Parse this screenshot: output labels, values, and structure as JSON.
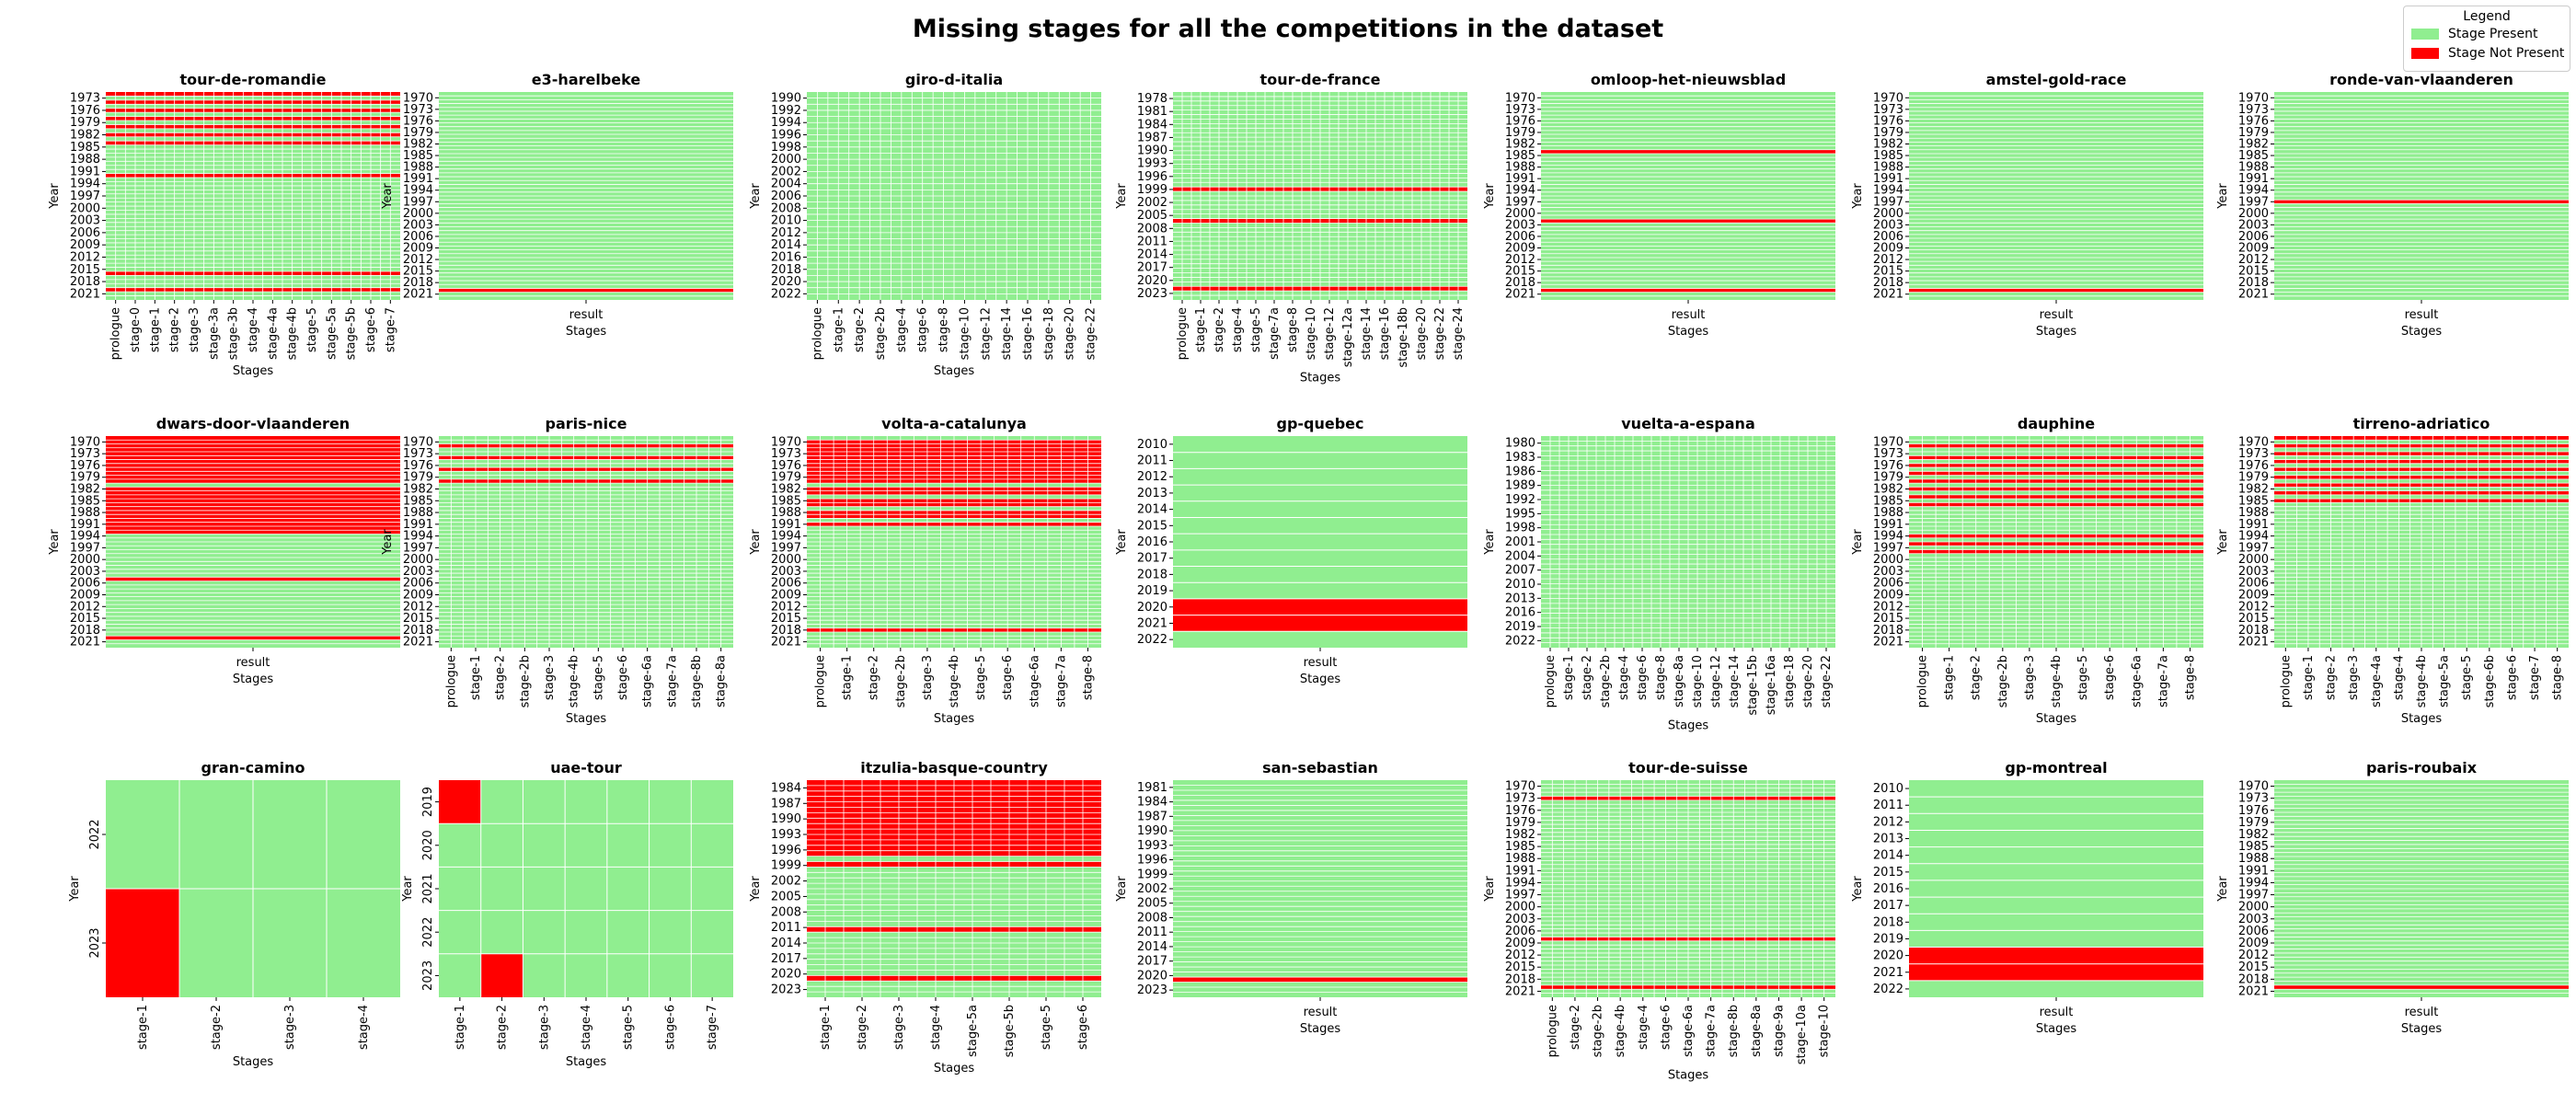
{
  "figure": {
    "title": "Missing stages for all the competitions in the dataset",
    "legend_title": "Legend",
    "legend_items": [
      {
        "label": "Stage Present",
        "color": "#90ee90"
      },
      {
        "label": "Stage Not Present",
        "color": "#ff0000"
      }
    ]
  },
  "chart_data": [
    {
      "type": "heatmap",
      "title": "tour-de-romandie",
      "xlabel": "Stages",
      "ylabel": "Year",
      "xticks": [
        "prologue",
        "stage-0",
        "stage-1",
        "stage-2",
        "stage-3",
        "stage-3a",
        "stage-3b",
        "stage-4",
        "stage-4a",
        "stage-4b",
        "stage-5",
        "stage-5a",
        "stage-5b",
        "stage-6",
        "stage-7"
      ],
      "yticks": [
        "1973",
        "1976",
        "1979",
        "1982",
        "1985",
        "1988",
        "1991",
        "1994",
        "1997",
        "2000",
        "2003",
        "2006",
        "2009",
        "2012",
        "2015",
        "2018",
        "2021"
      ],
      "rows": 51,
      "cols": 30,
      "full_missing_rows": [
        0,
        2,
        4,
        6,
        8,
        10,
        12,
        20,
        44,
        48
      ]
    },
    {
      "type": "heatmap",
      "title": "e3-harelbeke",
      "xlabel": "Stages",
      "ylabel": "Year",
      "xticks": [
        "result"
      ],
      "yticks": [
        "1970",
        "1973",
        "1976",
        "1979",
        "1982",
        "1985",
        "1988",
        "1991",
        "1994",
        "1997",
        "2000",
        "2003",
        "2006",
        "2009",
        "2012",
        "2015",
        "2018",
        "2021"
      ],
      "rows": 54,
      "cols": 1,
      "full_missing_rows": [
        51
      ]
    },
    {
      "type": "heatmap",
      "title": "giro-d-italia",
      "xlabel": "Stages",
      "ylabel": "Year",
      "xticks": [
        "prologue",
        "stage-1",
        "stage-2",
        "stage-2b",
        "stage-4",
        "stage-6",
        "stage-8",
        "stage-10",
        "stage-12",
        "stage-14",
        "stage-16",
        "stage-18",
        "stage-20",
        "stage-22"
      ],
      "yticks": [
        "1990",
        "1992",
        "1994",
        "1996",
        "1998",
        "2000",
        "2002",
        "2004",
        "2006",
        "2008",
        "2010",
        "2012",
        "2014",
        "2016",
        "2018",
        "2020",
        "2022"
      ],
      "rows": 34,
      "cols": 28,
      "full_missing_rows": []
    },
    {
      "type": "heatmap",
      "title": "tour-de-france",
      "xlabel": "Stages",
      "ylabel": "Year",
      "xticks": [
        "prologue",
        "stage-1",
        "stage-2",
        "stage-4",
        "stage-5",
        "stage-7a",
        "stage-8",
        "stage-10",
        "stage-12",
        "stage-12a",
        "stage-14",
        "stage-16",
        "stage-18b",
        "stage-20",
        "stage-22",
        "stage-24"
      ],
      "yticks": [
        "1978",
        "1981",
        "1984",
        "1987",
        "1990",
        "1993",
        "1996",
        "1999",
        "2002",
        "2005",
        "2008",
        "2011",
        "2014",
        "2017",
        "2020",
        "2023"
      ],
      "rows": 46,
      "cols": 32,
      "full_missing_rows": [
        21,
        28,
        43
      ]
    },
    {
      "type": "heatmap",
      "title": "omloop-het-nieuwsblad",
      "xlabel": "Stages",
      "ylabel": "Year",
      "xticks": [
        "result"
      ],
      "yticks": [
        "1970",
        "1973",
        "1976",
        "1979",
        "1982",
        "1985",
        "1988",
        "1991",
        "1994",
        "1997",
        "2000",
        "2003",
        "2006",
        "2009",
        "2012",
        "2015",
        "2018",
        "2021"
      ],
      "rows": 54,
      "cols": 1,
      "full_missing_rows": [
        15,
        33,
        51
      ]
    },
    {
      "type": "heatmap",
      "title": "amstel-gold-race",
      "xlabel": "Stages",
      "ylabel": "Year",
      "xticks": [
        "result"
      ],
      "yticks": [
        "1970",
        "1973",
        "1976",
        "1979",
        "1982",
        "1985",
        "1988",
        "1991",
        "1994",
        "1997",
        "2000",
        "2003",
        "2006",
        "2009",
        "2012",
        "2015",
        "2018",
        "2021"
      ],
      "rows": 54,
      "cols": 1,
      "full_missing_rows": [
        51
      ]
    },
    {
      "type": "heatmap",
      "title": "ronde-van-vlaanderen",
      "xlabel": "Stages",
      "ylabel": "Year",
      "xticks": [
        "result"
      ],
      "yticks": [
        "1970",
        "1973",
        "1976",
        "1979",
        "1982",
        "1985",
        "1988",
        "1991",
        "1994",
        "1997",
        "2000",
        "2003",
        "2006",
        "2009",
        "2012",
        "2015",
        "2018",
        "2021"
      ],
      "rows": 54,
      "cols": 1,
      "full_missing_rows": [
        28
      ]
    },
    {
      "type": "heatmap",
      "title": "dwars-door-vlaanderen",
      "xlabel": "Stages",
      "ylabel": "Year",
      "xticks": [
        "result"
      ],
      "yticks": [
        "1970",
        "1973",
        "1976",
        "1979",
        "1982",
        "1985",
        "1988",
        "1991",
        "1994",
        "1997",
        "2000",
        "2003",
        "2006",
        "2009",
        "2012",
        "2015",
        "2018",
        "2021"
      ],
      "rows": 54,
      "cols": 1,
      "full_missing_rows": [
        0,
        1,
        2,
        3,
        4,
        5,
        6,
        7,
        8,
        9,
        10,
        11,
        13,
        14,
        15,
        16,
        17,
        18,
        19,
        20,
        21,
        22,
        23,
        24,
        36,
        51
      ]
    },
    {
      "type": "heatmap",
      "title": "paris-nice",
      "xlabel": "Stages",
      "ylabel": "Year",
      "xticks": [
        "prologue",
        "stage-1",
        "stage-2",
        "stage-2b",
        "stage-3",
        "stage-4b",
        "stage-5",
        "stage-6",
        "stage-6a",
        "stage-7a",
        "stage-8b",
        "stage-8a"
      ],
      "yticks": [
        "1970",
        "1973",
        "1976",
        "1979",
        "1982",
        "1985",
        "1988",
        "1991",
        "1994",
        "1997",
        "2000",
        "2003",
        "2006",
        "2009",
        "2012",
        "2015",
        "2018",
        "2021"
      ],
      "rows": 54,
      "cols": 24,
      "full_missing_rows": [
        2,
        5,
        8,
        11
      ]
    },
    {
      "type": "heatmap",
      "title": "volta-a-catalunya",
      "xlabel": "Stages",
      "ylabel": "Year",
      "xticks": [
        "prologue",
        "stage-1",
        "stage-2",
        "stage-2b",
        "stage-3",
        "stage-4b",
        "stage-5",
        "stage-6",
        "stage-6a",
        "stage-7a",
        "stage-8"
      ],
      "yticks": [
        "1970",
        "1973",
        "1976",
        "1979",
        "1982",
        "1985",
        "1988",
        "1991",
        "1994",
        "1997",
        "2000",
        "2003",
        "2006",
        "2009",
        "2012",
        "2015",
        "2018",
        "2021"
      ],
      "rows": 54,
      "cols": 22,
      "full_missing_rows": [
        1,
        2,
        3,
        4,
        5,
        6,
        7,
        8,
        9,
        10,
        11,
        13,
        14,
        16,
        17,
        19,
        20,
        22,
        49
      ]
    },
    {
      "type": "heatmap",
      "title": "gp-quebec",
      "xlabel": "Stages",
      "ylabel": "Year",
      "xticks": [
        "result"
      ],
      "yticks": [
        "2010",
        "2011",
        "2012",
        "2013",
        "2014",
        "2015",
        "2016",
        "2017",
        "2018",
        "2019",
        "2020",
        "2021",
        "2022"
      ],
      "rows": 13,
      "cols": 1,
      "full_missing_rows": [
        10,
        11
      ]
    },
    {
      "type": "heatmap",
      "title": "vuelta-a-espana",
      "xlabel": "Stages",
      "ylabel": "Year",
      "xticks": [
        "prologue",
        "stage-1",
        "stage-2",
        "stage-2b",
        "stage-4",
        "stage-6",
        "stage-8",
        "stage-8a",
        "stage-10",
        "stage-12",
        "stage-14",
        "stage-15b",
        "stage-16a",
        "stage-18",
        "stage-20",
        "stage-22"
      ],
      "yticks": [
        "1980",
        "1983",
        "1986",
        "1989",
        "1992",
        "1995",
        "1998",
        "2001",
        "2004",
        "2007",
        "2010",
        "2013",
        "2016",
        "2019",
        "2022"
      ],
      "rows": 43,
      "cols": 32,
      "full_missing_rows": []
    },
    {
      "type": "heatmap",
      "title": "dauphine",
      "xlabel": "Stages",
      "ylabel": "Year",
      "xticks": [
        "prologue",
        "stage-1",
        "stage-2",
        "stage-2b",
        "stage-3",
        "stage-4b",
        "stage-5",
        "stage-6",
        "stage-6a",
        "stage-7a",
        "stage-8"
      ],
      "yticks": [
        "1970",
        "1973",
        "1976",
        "1979",
        "1982",
        "1985",
        "1988",
        "1991",
        "1994",
        "1997",
        "2000",
        "2003",
        "2006",
        "2009",
        "2012",
        "2015",
        "2018",
        "2021"
      ],
      "rows": 54,
      "cols": 22,
      "full_missing_rows": [
        2,
        5,
        7,
        9,
        11,
        13,
        15,
        17,
        25,
        27,
        29
      ]
    },
    {
      "type": "heatmap",
      "title": "tirreno-adriatico",
      "xlabel": "Stages",
      "ylabel": "Year",
      "xticks": [
        "prologue",
        "stage-1",
        "stage-2",
        "stage-3",
        "stage-4a",
        "stage-4",
        "stage-4b",
        "stage-5a",
        "stage-5",
        "stage-6b",
        "stage-6",
        "stage-7",
        "stage-8"
      ],
      "yticks": [
        "1970",
        "1973",
        "1976",
        "1979",
        "1982",
        "1985",
        "1988",
        "1991",
        "1994",
        "1997",
        "2000",
        "2003",
        "2006",
        "2009",
        "2012",
        "2015",
        "2018",
        "2021"
      ],
      "rows": 54,
      "cols": 26,
      "full_missing_rows": [
        0,
        2,
        4,
        6,
        8,
        10,
        12,
        14,
        16
      ]
    },
    {
      "type": "heatmap",
      "title": "gran-camino",
      "xlabel": "Stages",
      "ylabel": "Year",
      "xticks": [
        "stage-1",
        "stage-2",
        "stage-3",
        "stage-4"
      ],
      "yticks": [
        "2022",
        "2023"
      ],
      "rows": 2,
      "cols": 4,
      "full_missing_rows": [],
      "missing_cells": [
        [
          1,
          0
        ]
      ]
    },
    {
      "type": "heatmap",
      "title": "uae-tour",
      "xlabel": "Stages",
      "ylabel": "Year",
      "xticks": [
        "stage-1",
        "stage-2",
        "stage-3",
        "stage-4",
        "stage-5",
        "stage-6",
        "stage-7"
      ],
      "yticks": [
        "2019",
        "2020",
        "2021",
        "2022",
        "2023"
      ],
      "rows": 5,
      "cols": 7,
      "full_missing_rows": [],
      "missing_cells": [
        [
          0,
          0
        ],
        [
          4,
          1
        ]
      ]
    },
    {
      "type": "heatmap",
      "title": "itzulia-basque-country",
      "xlabel": "Stages",
      "ylabel": "Year",
      "xticks": [
        "stage-1",
        "stage-2",
        "stage-3",
        "stage-4",
        "stage-5a",
        "stage-5b",
        "stage-5",
        "stage-6"
      ],
      "yticks": [
        "1984",
        "1987",
        "1990",
        "1993",
        "1996",
        "1999",
        "2002",
        "2005",
        "2008",
        "2011",
        "2014",
        "2017",
        "2020",
        "2023"
      ],
      "rows": 40,
      "cols": 16,
      "full_missing_rows": [
        0,
        1,
        2,
        3,
        4,
        5,
        6,
        7,
        8,
        9,
        10,
        11,
        12,
        13,
        15,
        27,
        36
      ]
    },
    {
      "type": "heatmap",
      "title": "san-sebastian",
      "xlabel": "Stages",
      "ylabel": "Year",
      "xticks": [
        "result"
      ],
      "yticks": [
        "1981",
        "1984",
        "1987",
        "1990",
        "1993",
        "1996",
        "1999",
        "2002",
        "2005",
        "2008",
        "2011",
        "2014",
        "2017",
        "2020",
        "2023"
      ],
      "rows": 43,
      "cols": 1,
      "full_missing_rows": [
        39
      ]
    },
    {
      "type": "heatmap",
      "title": "tour-de-suisse",
      "xlabel": "Stages",
      "ylabel": "Year",
      "xticks": [
        "prologue",
        "stage-2",
        "stage-2b",
        "stage-4b",
        "stage-4",
        "stage-6",
        "stage-6a",
        "stage-7a",
        "stage-8b",
        "stage-8a",
        "stage-9a",
        "stage-10a",
        "stage-10"
      ],
      "yticks": [
        "1970",
        "1973",
        "1976",
        "1979",
        "1982",
        "1985",
        "1988",
        "1991",
        "1994",
        "1997",
        "2000",
        "2003",
        "2006",
        "2009",
        "2012",
        "2015",
        "2018",
        "2021"
      ],
      "rows": 54,
      "cols": 26,
      "full_missing_rows": [
        4,
        39,
        51
      ]
    },
    {
      "type": "heatmap",
      "title": "gp-montreal",
      "xlabel": "Stages",
      "ylabel": "Year",
      "xticks": [
        "result"
      ],
      "yticks": [
        "2010",
        "2011",
        "2012",
        "2013",
        "2014",
        "2015",
        "2016",
        "2017",
        "2018",
        "2019",
        "2020",
        "2021",
        "2022"
      ],
      "rows": 13,
      "cols": 1,
      "full_missing_rows": [
        10,
        11
      ]
    },
    {
      "type": "heatmap",
      "title": "paris-roubaix",
      "xlabel": "Stages",
      "ylabel": "Year",
      "xticks": [
        "result"
      ],
      "yticks": [
        "1970",
        "1973",
        "1976",
        "1979",
        "1982",
        "1985",
        "1988",
        "1991",
        "1994",
        "1997",
        "2000",
        "2003",
        "2006",
        "2009",
        "2012",
        "2015",
        "2018",
        "2021"
      ],
      "rows": 54,
      "cols": 1,
      "full_missing_rows": [
        51
      ]
    }
  ]
}
